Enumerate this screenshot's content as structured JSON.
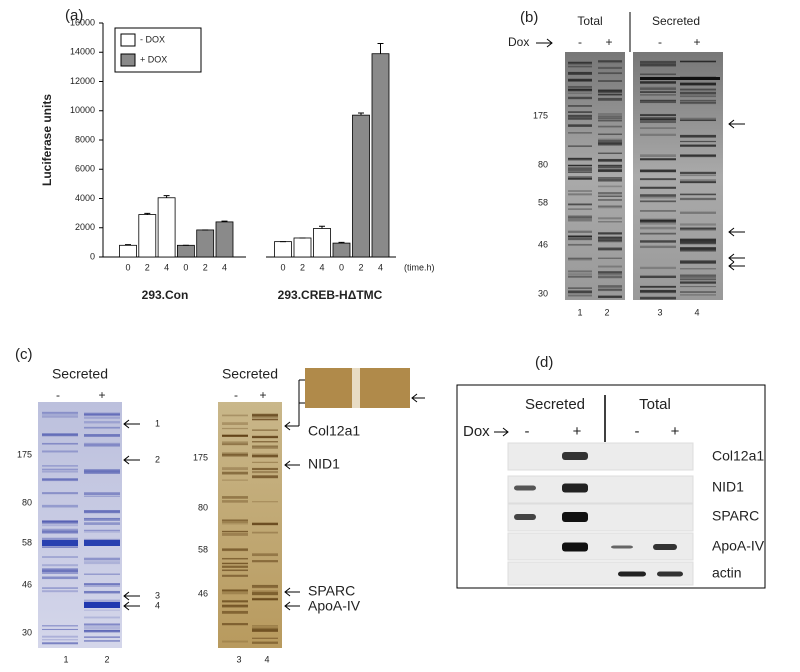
{
  "chart_data": {
    "type": "bar",
    "panel_label": "(a)",
    "ylabel": "Luciferase units",
    "x_unit": "(time.h)",
    "categories": [
      "0",
      "2",
      "4",
      "0",
      "2",
      "4",
      "0",
      "2",
      "4",
      "0",
      "2",
      "4"
    ],
    "groups": [
      "293.Con",
      "293.CREB-HΔTMC"
    ],
    "series": [
      {
        "name": "- DOX",
        "color": "#ffffff",
        "values": [
          800,
          2900,
          4050,
          null,
          null,
          null,
          1050,
          1300,
          1950,
          null,
          null,
          null
        ],
        "errors": [
          50,
          80,
          150,
          null,
          null,
          null,
          0,
          0,
          150,
          null,
          null,
          null
        ]
      },
      {
        "name": "+ DOX",
        "color": "#8a8a8a",
        "values": [
          null,
          null,
          null,
          800,
          1850,
          2400,
          null,
          null,
          null,
          950,
          9700,
          13900
        ],
        "errors": [
          null,
          null,
          null,
          0,
          0,
          50,
          null,
          null,
          null,
          50,
          150,
          700
        ]
      }
    ],
    "ylim": [
      0,
      16000
    ],
    "yticks": [
      0,
      2000,
      4000,
      6000,
      8000,
      10000,
      12000,
      14000,
      16000
    ],
    "legend": "upper left"
  },
  "panel_b": {
    "label": "(b)",
    "total": "Total",
    "secreted": "Secreted",
    "dox": "Dox",
    "signs": [
      "-",
      "+",
      "-",
      "+"
    ],
    "markers": [
      "175",
      "80",
      "58",
      "46",
      "30"
    ],
    "lanes": [
      "1",
      "2",
      "3",
      "4"
    ]
  },
  "panel_c": {
    "label": "(c)",
    "secreted": "Secreted",
    "signs": [
      "-",
      "+"
    ],
    "markers": [
      "175",
      "80",
      "58",
      "46",
      "30"
    ],
    "band_numbers": [
      "1",
      "2",
      "3",
      "4"
    ],
    "lanes": [
      "1",
      "2",
      "3",
      "4"
    ],
    "proteins": [
      "Col12a1",
      "NID1",
      "SPARC",
      "ApoA-IV"
    ]
  },
  "panel_d": {
    "label": "(d)",
    "secreted": "Secreted",
    "total": "Total",
    "dox": "Dox",
    "signs": [
      "-",
      "+",
      "-",
      "+"
    ],
    "rows": [
      "Col12a1",
      "NID1",
      "SPARC",
      "ApoA-IV",
      "actin"
    ]
  }
}
